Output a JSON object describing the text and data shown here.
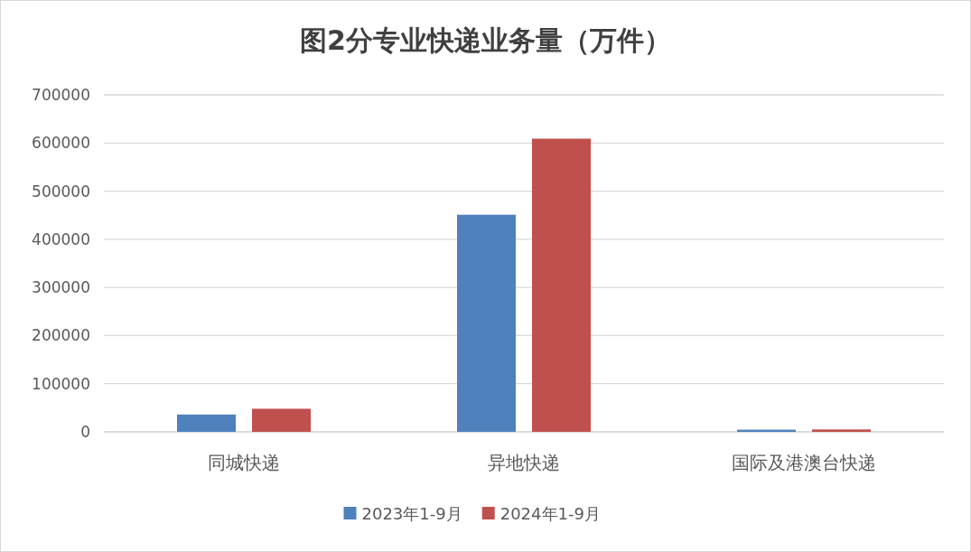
{
  "chart_data": {
    "type": "bar",
    "title": "图2分专业快递业务量（万件）",
    "categories": [
      "同城快递",
      "异地快递",
      "国际及港澳台快递"
    ],
    "series": [
      {
        "name": "2023年1-9月",
        "color": "#4f81bd",
        "values": [
          36000,
          451000,
          4500
        ]
      },
      {
        "name": "2024年1-9月",
        "color": "#c0504d",
        "values": [
          48000,
          609000,
          5000
        ]
      }
    ],
    "ylim": [
      0,
      700000
    ],
    "yticks": [
      {
        "value": 0,
        "label": "0"
      },
      {
        "value": 100000,
        "label": "100000"
      },
      {
        "value": 200000,
        "label": "200000"
      },
      {
        "value": 300000,
        "label": "300000"
      },
      {
        "value": 400000,
        "label": "400000"
      },
      {
        "value": 500000,
        "label": "500000"
      },
      {
        "value": 600000,
        "label": "600000"
      },
      {
        "value": 700000,
        "label": "700000"
      }
    ],
    "grid": "y",
    "legend": "bottom"
  }
}
